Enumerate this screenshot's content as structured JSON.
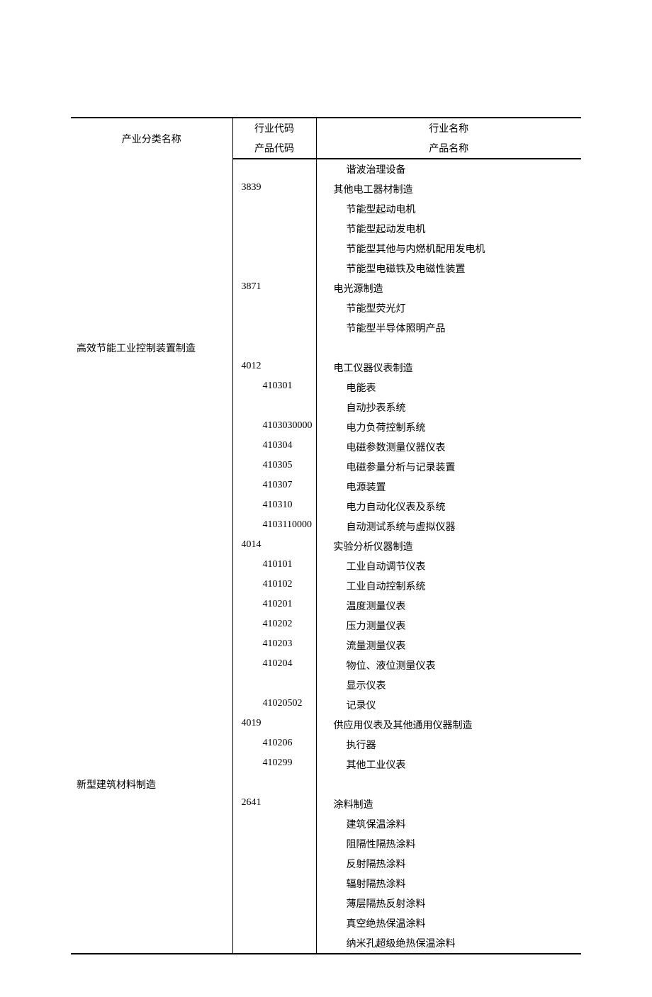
{
  "headers": {
    "col1_top": "产业分类名称",
    "col2_top": "行业代码",
    "col3_top": "行业名称",
    "col2_bottom": "产品代码",
    "col3_bottom": "产品名称"
  },
  "rows": [
    {
      "col1": "",
      "col2": "",
      "col2_class": "code-level1",
      "col3": "谐波治理设备",
      "col3_class": "name-level2"
    },
    {
      "col1": "",
      "col2": "3839",
      "col2_class": "code-level1",
      "col3": "其他电工器材制造",
      "col3_class": "name-level1"
    },
    {
      "col1": "",
      "col2": "",
      "col2_class": "code-level1",
      "col3": "节能型起动电机",
      "col3_class": "name-level2"
    },
    {
      "col1": "",
      "col2": "",
      "col2_class": "code-level1",
      "col3": "节能型起动发电机",
      "col3_class": "name-level2"
    },
    {
      "col1": "",
      "col2": "",
      "col2_class": "code-level1",
      "col3": "节能型其他与内燃机配用发电机",
      "col3_class": "name-level2"
    },
    {
      "col1": "",
      "col2": "",
      "col2_class": "code-level1",
      "col3": "节能型电磁铁及电磁性装置",
      "col3_class": "name-level2"
    },
    {
      "col1": "",
      "col2": "3871",
      "col2_class": "code-level1",
      "col3": "电光源制造",
      "col3_class": "name-level1"
    },
    {
      "col1": "",
      "col2": "",
      "col2_class": "code-level1",
      "col3": "节能型荧光灯",
      "col3_class": "name-level2"
    },
    {
      "col1": "",
      "col2": "",
      "col2_class": "code-level1",
      "col3": "节能型半导体照明产品",
      "col3_class": "name-level2"
    },
    {
      "col1": "高效节能工业控制装置制造",
      "col2": "",
      "col2_class": "code-level1",
      "col3": "",
      "col3_class": "name-level1"
    },
    {
      "col1": "",
      "col2": "4012",
      "col2_class": "code-level1",
      "col3": "电工仪器仪表制造",
      "col3_class": "name-level1"
    },
    {
      "col1": "",
      "col2": "410301",
      "col2_class": "code-level2",
      "col3": "电能表",
      "col3_class": "name-level2"
    },
    {
      "col1": "",
      "col2": "",
      "col2_class": "code-level2",
      "col3": "自动抄表系统",
      "col3_class": "name-level2"
    },
    {
      "col1": "",
      "col2": "4103030000",
      "col2_class": "code-level2",
      "col3": "电力负荷控制系统",
      "col3_class": "name-level2"
    },
    {
      "col1": "",
      "col2": "410304",
      "col2_class": "code-level2",
      "col3": "电磁参数测量仪器仪表",
      "col3_class": "name-level2"
    },
    {
      "col1": "",
      "col2": "410305",
      "col2_class": "code-level2",
      "col3": "电磁参量分析与记录装置",
      "col3_class": "name-level2"
    },
    {
      "col1": "",
      "col2": "410307",
      "col2_class": "code-level2",
      "col3": "电源装置",
      "col3_class": "name-level2"
    },
    {
      "col1": "",
      "col2": "410310",
      "col2_class": "code-level2",
      "col3": "电力自动化仪表及系统",
      "col3_class": "name-level2"
    },
    {
      "col1": "",
      "col2": "4103110000",
      "col2_class": "code-level2",
      "col3": "自动测试系统与虚拟仪器",
      "col3_class": "name-level2"
    },
    {
      "col1": "",
      "col2": "4014",
      "col2_class": "code-level1",
      "col3": "实验分析仪器制造",
      "col3_class": "name-level1"
    },
    {
      "col1": "",
      "col2": "410101",
      "col2_class": "code-level2",
      "col3": "工业自动调节仪表",
      "col3_class": "name-level2"
    },
    {
      "col1": "",
      "col2": "410102",
      "col2_class": "code-level2",
      "col3": "工业自动控制系统",
      "col3_class": "name-level2"
    },
    {
      "col1": "",
      "col2": "410201",
      "col2_class": "code-level2",
      "col3": "温度测量仪表",
      "col3_class": "name-level2"
    },
    {
      "col1": "",
      "col2": "410202",
      "col2_class": "code-level2",
      "col3": "压力测量仪表",
      "col3_class": "name-level2"
    },
    {
      "col1": "",
      "col2": "410203",
      "col2_class": "code-level2",
      "col3": "流量测量仪表",
      "col3_class": "name-level2"
    },
    {
      "col1": "",
      "col2": "410204",
      "col2_class": "code-level2",
      "col3": "物位、液位测量仪表",
      "col3_class": "name-level2"
    },
    {
      "col1": "",
      "col2": "",
      "col2_class": "code-level2",
      "col3": "显示仪表",
      "col3_class": "name-level2"
    },
    {
      "col1": "",
      "col2": "41020502",
      "col2_class": "code-level2",
      "col3": "记录仪",
      "col3_class": "name-level2"
    },
    {
      "col1": "",
      "col2": "4019",
      "col2_class": "code-level1",
      "col3": "供应用仪表及其他通用仪器制造",
      "col3_class": "name-level1"
    },
    {
      "col1": "",
      "col2": "410206",
      "col2_class": "code-level2",
      "col3": "执行器",
      "col3_class": "name-level2"
    },
    {
      "col1": "",
      "col2": "410299",
      "col2_class": "code-level2",
      "col3": "其他工业仪表",
      "col3_class": "name-level2"
    },
    {
      "col1": "新型建筑材料制造",
      "col2": "",
      "col2_class": "code-level1",
      "col3": "",
      "col3_class": "name-level1"
    },
    {
      "col1": "",
      "col2": "2641",
      "col2_class": "code-level1",
      "col3": "涂料制造",
      "col3_class": "name-level1"
    },
    {
      "col1": "",
      "col2": "",
      "col2_class": "code-level1",
      "col3": "建筑保温涂料",
      "col3_class": "name-level2"
    },
    {
      "col1": "",
      "col2": "",
      "col2_class": "code-level1",
      "col3": "阻隔性隔热涂料",
      "col3_class": "name-level2"
    },
    {
      "col1": "",
      "col2": "",
      "col2_class": "code-level1",
      "col3": "反射隔热涂料",
      "col3_class": "name-level2"
    },
    {
      "col1": "",
      "col2": "",
      "col2_class": "code-level1",
      "col3": "辐射隔热涂料",
      "col3_class": "name-level2"
    },
    {
      "col1": "",
      "col2": "",
      "col2_class": "code-level1",
      "col3": "薄层隔热反射涂料",
      "col3_class": "name-level2"
    },
    {
      "col1": "",
      "col2": "",
      "col2_class": "code-level1",
      "col3": "真空绝热保温涂料",
      "col3_class": "name-level2"
    },
    {
      "col1": "",
      "col2": "",
      "col2_class": "code-level1",
      "col3": "纳米孔超级绝热保温涂料",
      "col3_class": "name-level2"
    }
  ]
}
